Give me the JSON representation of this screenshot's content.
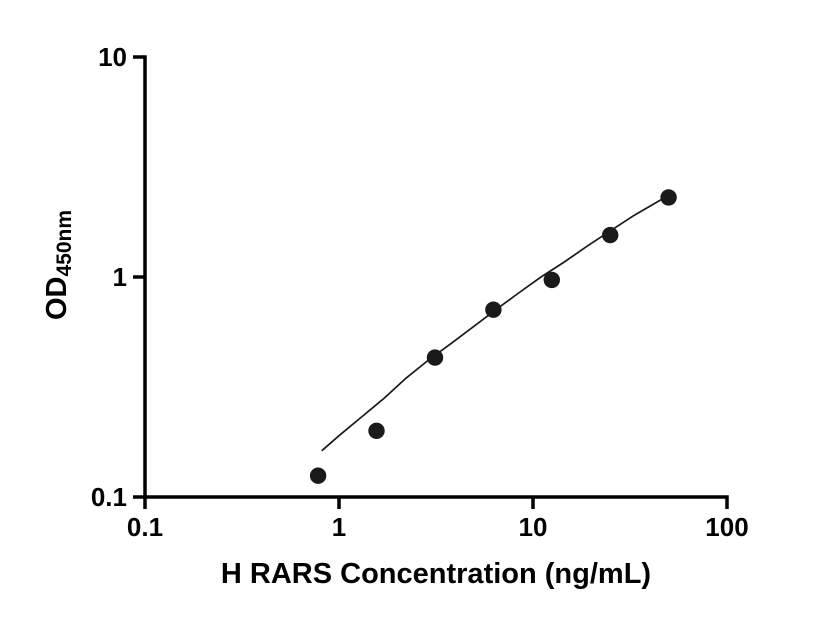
{
  "chart_data": {
    "type": "scatter",
    "title": "",
    "xlabel": "H RARS Concentration (ng/mL)",
    "ylabel_main": "OD",
    "ylabel_sub": "450nm",
    "x_scale": "log",
    "y_scale": "log",
    "xlim": [
      0.1,
      100
    ],
    "ylim": [
      0.1,
      10
    ],
    "grid": false,
    "legend": "none",
    "axis_color": "#000000",
    "marker_color": "#1a1a1a",
    "line_color": "#1a1a1a",
    "x_ticks": [
      {
        "v": 0.1,
        "label": "0.1"
      },
      {
        "v": 1,
        "label": "1"
      },
      {
        "v": 10,
        "label": "10"
      },
      {
        "v": 100,
        "label": "100"
      }
    ],
    "y_ticks": [
      {
        "v": 0.1,
        "label": "0.1"
      },
      {
        "v": 1,
        "label": "1"
      },
      {
        "v": 10,
        "label": "10"
      }
    ],
    "series": [
      {
        "name": "standard-curve-points",
        "x": [
          0.78,
          1.56,
          3.125,
          6.25,
          12.5,
          25,
          50
        ],
        "y": [
          0.125,
          0.2,
          0.43,
          0.71,
          0.97,
          1.55,
          2.3
        ]
      }
    ],
    "fit_curve": [
      [
        0.82,
        0.163
      ],
      [
        1.0,
        0.19
      ],
      [
        1.3,
        0.23
      ],
      [
        1.7,
        0.28
      ],
      [
        2.2,
        0.345
      ],
      [
        2.9,
        0.42
      ],
      [
        3.8,
        0.5
      ],
      [
        5.0,
        0.6
      ],
      [
        6.5,
        0.715
      ],
      [
        8.5,
        0.85
      ],
      [
        11,
        1.0
      ],
      [
        14.5,
        1.17
      ],
      [
        19,
        1.38
      ],
      [
        25,
        1.62
      ],
      [
        33,
        1.9
      ],
      [
        42,
        2.15
      ],
      [
        50,
        2.35
      ]
    ]
  }
}
